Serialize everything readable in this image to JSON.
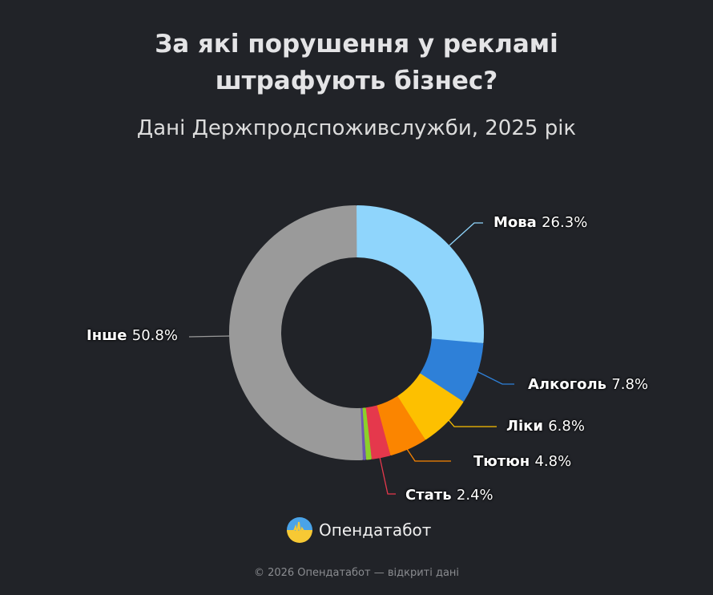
{
  "header": {
    "title_line1": "За які порушення у рекламі",
    "title_line2": "штрафують бізнес?",
    "subtitle": "Дані Держпродспоживслужби, 2025 рік"
  },
  "brand": {
    "name": "Опендатабот",
    "icon": "opendatabot-logo-icon"
  },
  "footer": {
    "text": "© 2026 Опендатабот — відкриті дані"
  },
  "chart_data": {
    "type": "pie",
    "subtype": "donut",
    "title": "За які порушення у рекламі штрафують бізнес?",
    "subtitle": "Дані Держпродспоживслужби, 2025 рік",
    "slices": [
      {
        "label": "Мова",
        "value": 26.3,
        "display": "26.3%",
        "color": "#8fd5fc"
      },
      {
        "label": "Алкоголь",
        "value": 7.8,
        "display": "7.8%",
        "color": "#2e80d8"
      },
      {
        "label": "Ліки",
        "value": 6.8,
        "display": "6.8%",
        "color": "#fdc000"
      },
      {
        "label": "Тютюн",
        "value": 4.8,
        "display": "4.8%",
        "color": "#fb8500"
      },
      {
        "label": "Стать",
        "value": 2.4,
        "display": "2.4%",
        "color": "#e5384c"
      },
      {
        "label": "",
        "value": 0.7,
        "display": "",
        "color": "#8ccf2b"
      },
      {
        "label": "",
        "value": 0.4,
        "display": "",
        "color": "#6f58b0"
      },
      {
        "label": "Інше",
        "value": 50.8,
        "display": "50.8%",
        "color": "#9a9a9a"
      }
    ]
  },
  "labels": [
    {
      "name": "Мова",
      "pct": "26.3%"
    },
    {
      "name": "Алкоголь",
      "pct": "7.8%"
    },
    {
      "name": "Ліки",
      "pct": "6.8%"
    },
    {
      "name": "Тютюн",
      "pct": "4.8%"
    },
    {
      "name": "Стать",
      "pct": "2.4%"
    },
    {
      "name": "Інше",
      "pct": "50.8%"
    }
  ]
}
